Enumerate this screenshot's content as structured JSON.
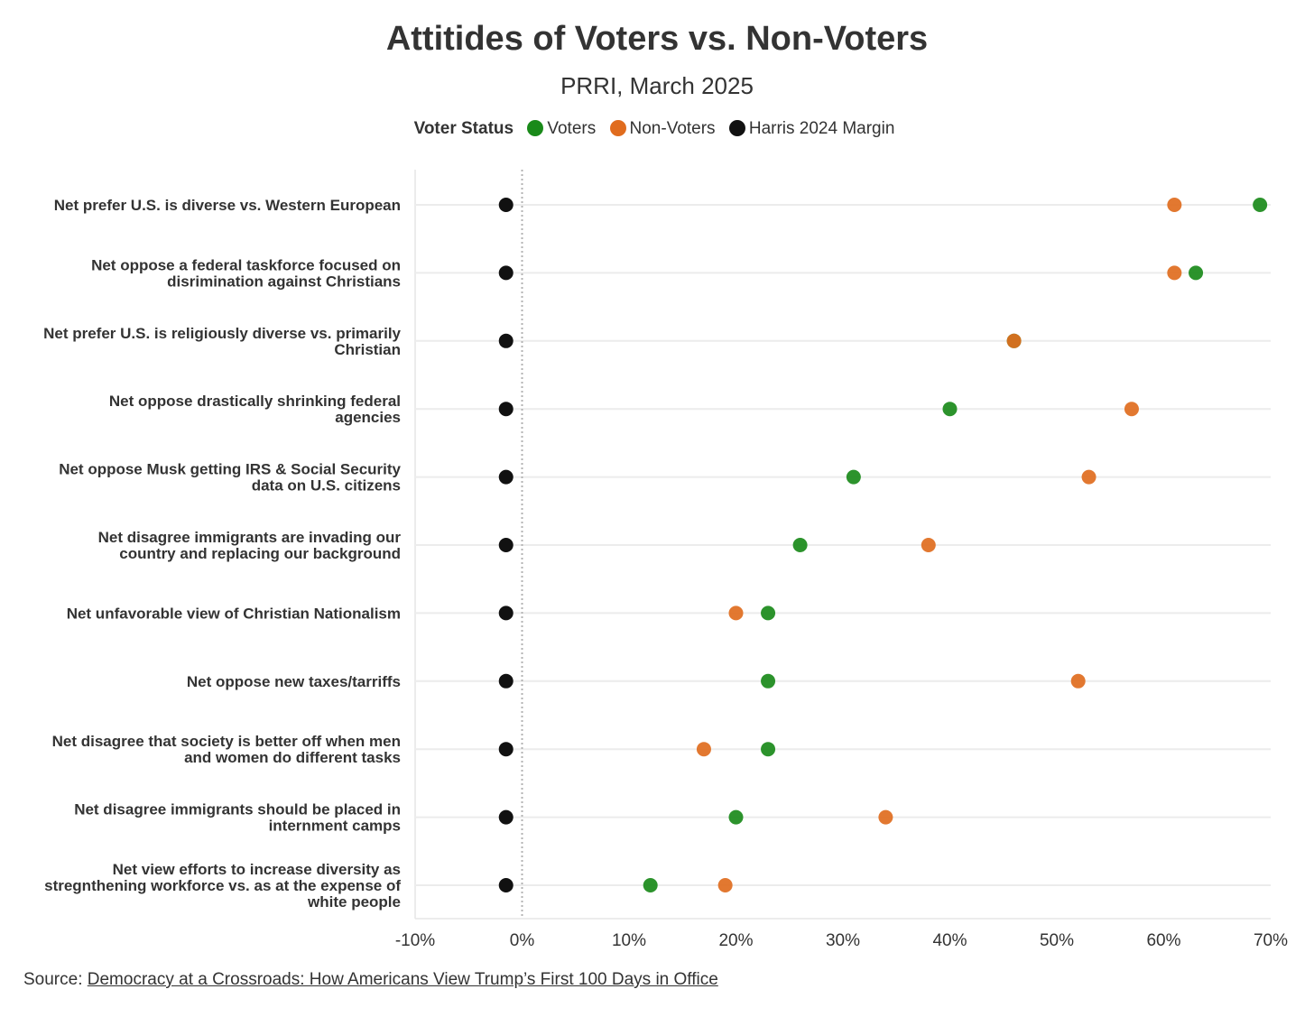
{
  "chart_data": {
    "type": "scatter",
    "title": "Attitides of Voters vs. Non-Voters",
    "subtitle": "PRRI, March 2025",
    "legend": {
      "title": "Voter Status",
      "placement": "top-center",
      "entries": [
        {
          "name": "Voters",
          "color": "#1a8a1a"
        },
        {
          "name": "Non-Voters",
          "color": "#e06c1e"
        },
        {
          "name": "Harris 2024 Margin",
          "color": "#111111"
        }
      ]
    },
    "xlim": [
      -10,
      70
    ],
    "x_ticks": [
      "-10%",
      "0%",
      "10%",
      "20%",
      "30%",
      "40%",
      "50%",
      "60%",
      "70%"
    ],
    "x_tick_values": [
      -10,
      0,
      10,
      20,
      30,
      40,
      50,
      60,
      70
    ],
    "grid": "horizontal",
    "reference_line": 0,
    "categories": [
      [
        "Net prefer U.S. is diverse vs. Western European"
      ],
      [
        "Net oppose a federal taskforce focused on",
        "disrimination against Christians"
      ],
      [
        "Net prefer U.S. is religiously diverse vs. primarily",
        "Christian"
      ],
      [
        "Net oppose drastically shrinking federal",
        "agencies"
      ],
      [
        "Net oppose Musk getting IRS & Social Security",
        "data on U.S. citizens"
      ],
      [
        "Net disagree immigrants are invading our",
        "country and replacing our background"
      ],
      [
        "Net unfavorable view of Christian Nationalism"
      ],
      [
        "Net oppose new taxes/tarriffs"
      ],
      [
        "Net disagree that society is better off when men",
        "and women do different tasks"
      ],
      [
        "Net disagree immigrants should be placed in",
        "internment camps"
      ],
      [
        "Net view efforts to increase diversity as",
        "stregnthening workforce vs. as at the expense of",
        "white people"
      ]
    ],
    "series": [
      {
        "name": "Voters",
        "color": "#1a8a1a",
        "values": [
          69,
          63,
          46,
          40,
          31,
          26,
          23,
          23,
          23,
          20,
          12
        ]
      },
      {
        "name": "Non-Voters",
        "color": "#e06c1e",
        "values": [
          61,
          61,
          46,
          57,
          53,
          38,
          20,
          52,
          17,
          34,
          19
        ]
      },
      {
        "name": "Harris 2024 Margin",
        "color": "#111111",
        "values": [
          -1.5,
          -1.5,
          -1.5,
          -1.5,
          -1.5,
          -1.5,
          -1.5,
          -1.5,
          -1.5,
          -1.5,
          -1.5
        ]
      }
    ]
  },
  "source": {
    "label": "Source: ",
    "link_text": "Democracy at a Crossroads: How Americans View Trump’s First 100 Days in Office"
  }
}
